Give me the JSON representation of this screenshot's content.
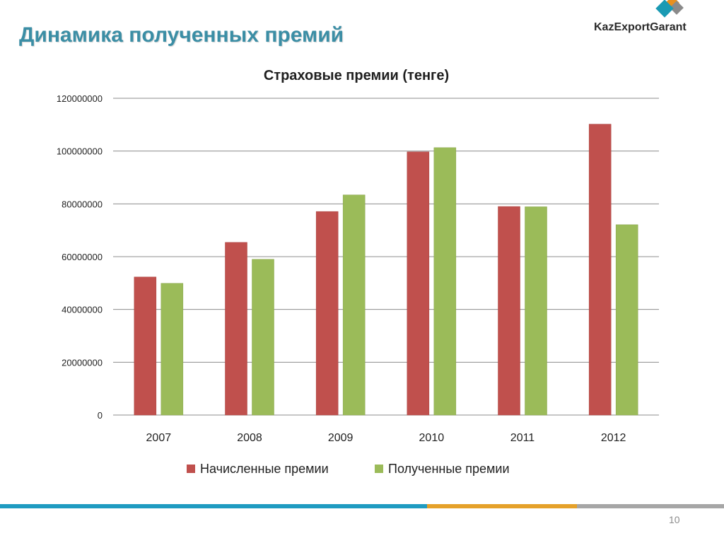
{
  "slide": {
    "title": "Динамика полученных премий",
    "page_number": "10"
  },
  "logo": {
    "text": "KazExportGarant",
    "colors": [
      "#e8901e",
      "#1a9ab3",
      "#8a8a8a"
    ]
  },
  "footer": {
    "colors": [
      "#1f9bc1",
      "#e5a12a",
      "#a6a6a6"
    ]
  },
  "chart_data": {
    "type": "bar",
    "title": "Страховые премии (тенге)",
    "xlabel": "",
    "ylabel": "",
    "categories": [
      "2007",
      "2008",
      "2009",
      "2010",
      "2011",
      "2012"
    ],
    "series": [
      {
        "name": "Начисленные премии",
        "color": "#c0504d",
        "values": [
          52300000,
          65400000,
          77100000,
          99700000,
          79000000,
          110200000
        ]
      },
      {
        "name": "Полученные премии",
        "color": "#9bbb59",
        "values": [
          49900000,
          59000000,
          83400000,
          101300000,
          78900000,
          72100000
        ]
      }
    ],
    "ylim": [
      0,
      120000000
    ],
    "yticks": [
      "0",
      "20000000",
      "40000000",
      "60000000",
      "80000000",
      "100000000",
      "120000000"
    ],
    "grid": true,
    "legend": "bottom"
  }
}
